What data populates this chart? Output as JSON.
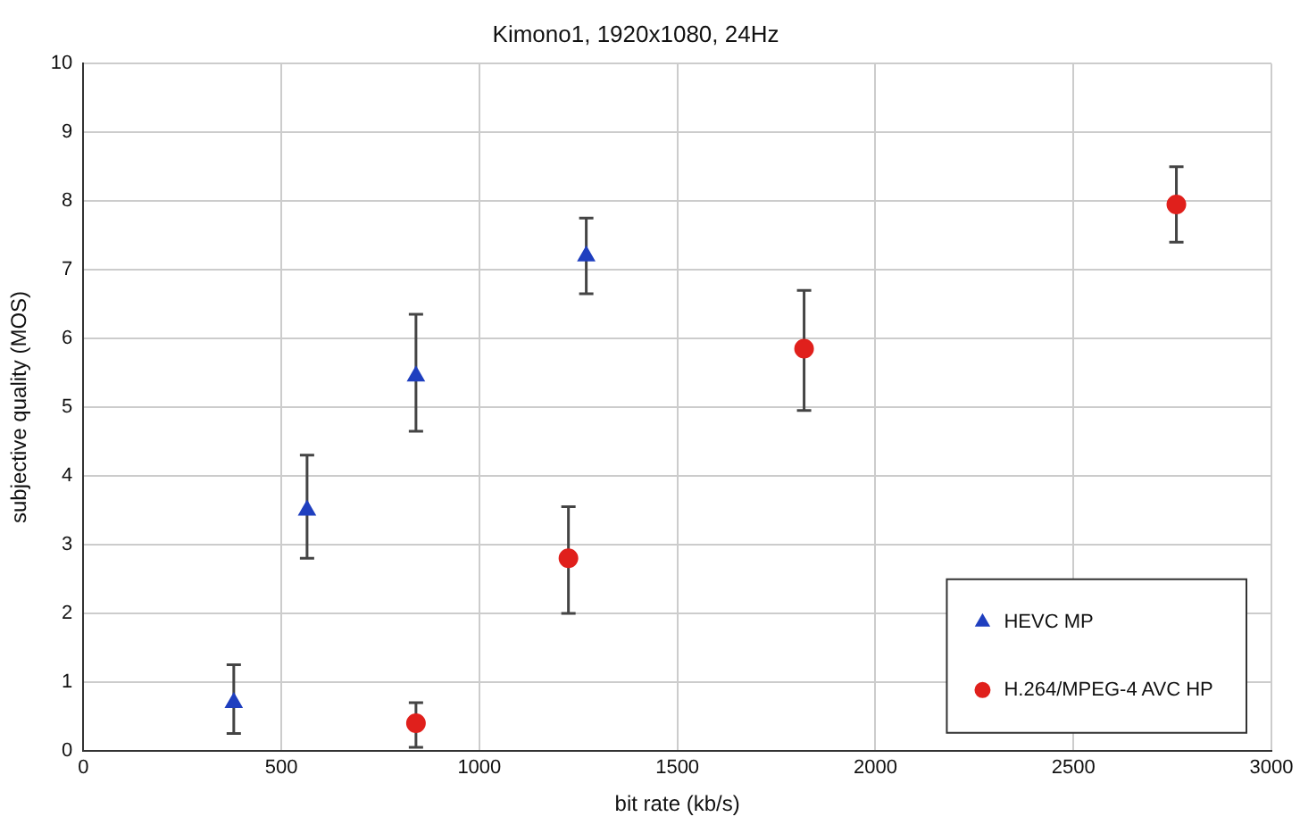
{
  "chart_data": {
    "type": "scatter",
    "title": "Kimono1, 1920x1080, 24Hz",
    "xlabel": "bit rate (kb/s)",
    "ylabel": "subjective quality (MOS)",
    "xlim": [
      0,
      3000
    ],
    "xticks": [
      0,
      500,
      1000,
      1500,
      2000,
      2500,
      3000
    ],
    "ylim": [
      0,
      10
    ],
    "yticks": [
      0,
      1,
      2,
      3,
      4,
      5,
      6,
      7,
      8,
      9,
      10
    ],
    "grid": true,
    "legend": "bottom right",
    "series": [
      {
        "name": "HEVC MP",
        "color": "#1f3fbf",
        "marker": "triangle",
        "x": [
          380,
          565,
          840,
          1270
        ],
        "values": [
          0.7,
          3.5,
          5.45,
          7.2
        ],
        "errors": [
          [
            0.25,
            1.25
          ],
          [
            2.8,
            4.3
          ],
          [
            4.65,
            6.35
          ],
          [
            6.65,
            7.75
          ]
        ]
      },
      {
        "name": "H.264/MPEG-4 AVC HP",
        "color": "#e0201c",
        "marker": "circle",
        "x": [
          840,
          1225,
          1820,
          2760
        ],
        "values": [
          0.4,
          2.8,
          5.85,
          7.95
        ],
        "errors": [
          [
            0.05,
            0.7
          ],
          [
            2.0,
            3.55
          ],
          [
            4.95,
            6.7
          ],
          [
            7.4,
            8.5
          ]
        ]
      }
    ]
  }
}
